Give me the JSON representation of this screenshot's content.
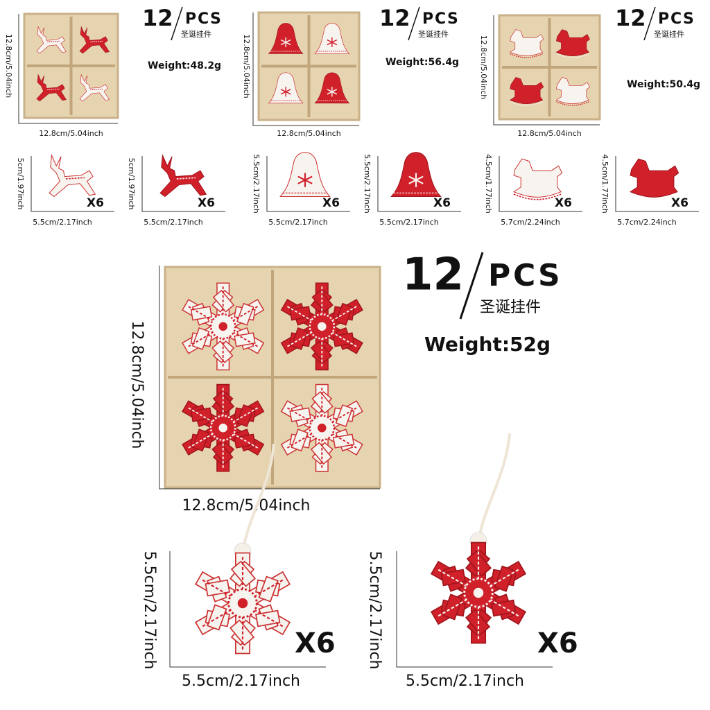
{
  "sets": [
    {
      "count": "12",
      "pcs": [
        "P",
        "C",
        "S"
      ],
      "subtitle": "圣诞挂件",
      "weight": "Weight:48.2g",
      "box_height": "12.8cm/5.04inch",
      "box_width": "12.8cm/5.04inch",
      "ornaments": [
        {
          "height": "5cm/1.97inch",
          "width": "5.5cm/2.17inch",
          "quantity": "X6"
        },
        {
          "height": "5cm/1.97inch",
          "width": "5.5cm/2.17inch",
          "quantity": "X6"
        }
      ]
    },
    {
      "count": "12",
      "pcs": [
        "P",
        "C",
        "S"
      ],
      "subtitle": "圣诞挂件",
      "weight": "Weight:56.4g",
      "box_height": "12.8cm/5.04inch",
      "box_width": "12.8cm/5.04inch",
      "ornaments": [
        {
          "height": "5.5cm/2.17inch",
          "width": "5.5cm/2.17inch",
          "quantity": "X6"
        },
        {
          "height": "5.5cm/2.17inch",
          "width": "5.5cm/2.17inch",
          "quantity": "X6"
        }
      ]
    },
    {
      "count": "12",
      "pcs": [
        "P",
        "C",
        "S"
      ],
      "subtitle": "圣诞挂件",
      "weight": "Weight:50.4g",
      "box_height": "12.8cm/5.04inch",
      "box_width": "12.8cm/5.04inch",
      "ornaments": [
        {
          "height": "4.5cm/1.77inch",
          "width": "5.7cm/2.24inch",
          "quantity": "X6"
        },
        {
          "height": "4.5cm/1.77inch",
          "width": "5.7cm/2.24inch",
          "quantity": "X6"
        }
      ]
    },
    {
      "count": "12",
      "pcs": [
        "P",
        "C",
        "S"
      ],
      "subtitle": "圣诞挂件",
      "weight": "Weight:52g",
      "box_height": "12.8cm/5.04inch",
      "box_width": "12.8cm/5.04inch",
      "ornaments": [
        {
          "height": "5.5cm/2.17inch",
          "width": "5.5cm/2.17inch",
          "quantity": "X6"
        },
        {
          "height": "5.5cm/2.17inch",
          "width": "5.5cm/2.17inch",
          "quantity": "X6"
        }
      ]
    }
  ]
}
